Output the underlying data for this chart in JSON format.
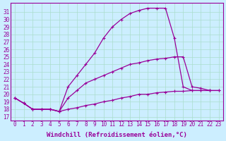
{
  "bg_color": "#cceeff",
  "line_color": "#990099",
  "marker": "+",
  "markersize": 3.5,
  "linewidth": 0.9,
  "xlabel": "Windchill (Refroidissement éolien,°C)",
  "xlabel_fontsize": 6.5,
  "tick_fontsize": 5.5,
  "xlim": [
    -0.5,
    23.5
  ],
  "ylim": [
    16.5,
    32.2
  ],
  "xticks": [
    0,
    1,
    2,
    3,
    4,
    5,
    6,
    7,
    8,
    9,
    10,
    11,
    12,
    13,
    14,
    15,
    16,
    17,
    18,
    19,
    20,
    21,
    22,
    23
  ],
  "yticks": [
    17,
    18,
    19,
    20,
    21,
    22,
    23,
    24,
    25,
    26,
    27,
    28,
    29,
    30,
    31
  ],
  "grid_color": "#aaddcc",
  "curves": [
    {
      "x": [
        0,
        1,
        2,
        3,
        4,
        5,
        6,
        7,
        8,
        9,
        10,
        11,
        12,
        13,
        14,
        15,
        16,
        17,
        18,
        19,
        20,
        21,
        22,
        23
      ],
      "y": [
        19.5,
        18.8,
        18.0,
        18.0,
        18.0,
        17.7,
        18.0,
        18.2,
        18.5,
        18.7,
        19.0,
        19.2,
        19.5,
        19.7,
        20.0,
        20.0,
        20.2,
        20.3,
        20.4,
        20.4,
        20.5,
        20.5,
        20.5,
        20.5
      ]
    },
    {
      "x": [
        0,
        1,
        2,
        3,
        4,
        5,
        6,
        7,
        8,
        9,
        10,
        11,
        12,
        13,
        14,
        15,
        16,
        17,
        18,
        19,
        20,
        21,
        22,
        23
      ],
      "y": [
        19.5,
        18.8,
        18.0,
        18.0,
        18.0,
        17.7,
        19.5,
        20.5,
        21.5,
        22.0,
        22.5,
        23.0,
        23.5,
        24.0,
        24.2,
        24.5,
        24.7,
        24.8,
        25.0,
        25.0,
        21.0,
        20.8,
        20.5,
        20.5
      ]
    },
    {
      "x": [
        0,
        1,
        2,
        3,
        4,
        5,
        6,
        7,
        8,
        9,
        10,
        11,
        12,
        13,
        14,
        15,
        16,
        17,
        18,
        19,
        20,
        21,
        22
      ],
      "y": [
        19.5,
        18.8,
        18.0,
        18.0,
        18.0,
        17.7,
        21.0,
        22.5,
        24.0,
        25.5,
        27.5,
        29.0,
        30.0,
        30.8,
        31.2,
        31.5,
        31.5,
        31.5,
        27.5,
        21.0,
        20.5,
        20.5,
        20.5
      ]
    }
  ]
}
